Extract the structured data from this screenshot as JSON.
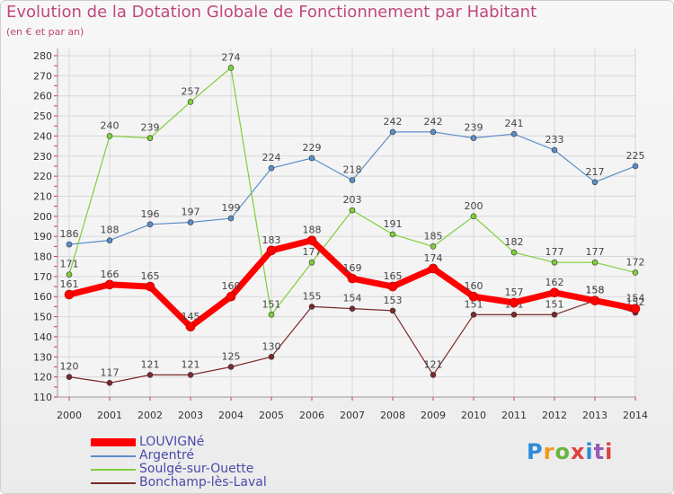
{
  "title": "Evolution de la Dotation Globale de Fonctionnement par Habitant",
  "subtitle": "(en € et par an)",
  "brand": {
    "text": "Proxiti",
    "colors": [
      "#2e8bd6",
      "#f29a1f",
      "#6cb33f",
      "#e04040",
      "#2e8bd6",
      "#9b59b6",
      "#e04040"
    ]
  },
  "chart_data": {
    "type": "line",
    "x": [
      "2000",
      "2001",
      "2002",
      "2003",
      "2004",
      "2005",
      "2006",
      "2007",
      "2008",
      "2009",
      "2010",
      "2011",
      "2012",
      "2013",
      "2014"
    ],
    "ylim": [
      110,
      280
    ],
    "yticks": [
      110,
      120,
      130,
      140,
      150,
      160,
      170,
      180,
      190,
      200,
      210,
      220,
      230,
      240,
      250,
      260,
      270,
      280
    ],
    "grid": true,
    "legend_position": "bottom-left",
    "series": [
      {
        "name": "LOUVIGNé",
        "color": "#ff0000",
        "values": [
          161,
          166,
          165,
          145,
          160,
          183,
          188,
          169,
          165,
          174,
          160,
          157,
          162,
          158,
          154
        ]
      },
      {
        "name": "Argentré",
        "color": "#5b8ec9",
        "values": [
          186,
          188,
          196,
          197,
          199,
          224,
          229,
          218,
          242,
          242,
          239,
          241,
          233,
          217,
          225
        ]
      },
      {
        "name": "Soulgé-sur-Ouette",
        "color": "#7fcf3a",
        "values": [
          171,
          240,
          239,
          257,
          274,
          151,
          177,
          203,
          191,
          185,
          200,
          182,
          177,
          177,
          172
        ]
      },
      {
        "name": "Bonchamp-lès-Laval",
        "color": "#7a2a2a",
        "values": [
          120,
          117,
          121,
          121,
          125,
          130,
          155,
          154,
          153,
          121,
          151,
          151,
          151,
          158,
          152
        ]
      }
    ]
  }
}
